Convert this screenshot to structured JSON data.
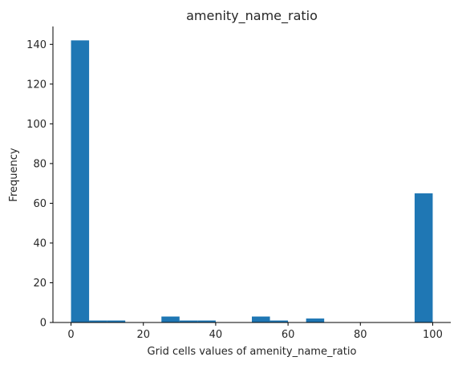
{
  "chart_data": {
    "type": "bar",
    "title": "amenity_name_ratio",
    "xlabel": "Grid cells values of amenity_name_ratio",
    "ylabel": "Frequency",
    "bin_edges": [
      0,
      5,
      10,
      15,
      20,
      25,
      30,
      35,
      40,
      45,
      50,
      55,
      60,
      65,
      70,
      75,
      80,
      85,
      90,
      95,
      100
    ],
    "values": [
      142,
      1,
      1,
      0,
      0,
      3,
      1,
      1,
      0,
      0,
      3,
      1,
      0,
      2,
      0,
      0,
      0,
      0,
      0,
      65
    ],
    "xlim": [
      -5,
      105
    ],
    "ylim": [
      0,
      149
    ],
    "xticks": [
      "0",
      "20",
      "40",
      "60",
      "80",
      "100"
    ],
    "yticks": [
      "0",
      "20",
      "40",
      "60",
      "80",
      "100",
      "120",
      "140"
    ],
    "bar_color": "#1f77b4",
    "grid": false,
    "legend": "none"
  }
}
